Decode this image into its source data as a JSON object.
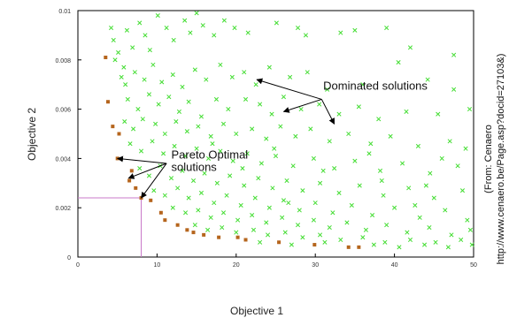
{
  "chart_data": {
    "type": "scatter",
    "title": "",
    "xlabel": "Objective 1",
    "ylabel": "Objective 2",
    "xlim": [
      0,
      50
    ],
    "ylim": [
      0,
      0.01
    ],
    "x_ticks": [
      "0",
      "10",
      "20",
      "30",
      "40",
      "50"
    ],
    "y_ticks": [
      "0",
      "0.002",
      "0.004",
      "0.006",
      "0.008",
      "0.01"
    ],
    "grid": false,
    "series": [
      {
        "role": "pareto",
        "color": "#b5651d",
        "marker": "square",
        "points": [
          [
            3.5,
            0.0081
          ],
          [
            3.8,
            0.0063
          ],
          [
            4.4,
            0.0053
          ],
          [
            5.2,
            0.005
          ],
          [
            5.0,
            0.004
          ],
          [
            6.5,
            0.0031
          ],
          [
            6.8,
            0.0035
          ],
          [
            7.3,
            0.0028
          ],
          [
            8.0,
            0.0024
          ],
          [
            9.2,
            0.0023
          ],
          [
            10.5,
            0.0018
          ],
          [
            11.0,
            0.0015
          ],
          [
            12.6,
            0.0013
          ],
          [
            13.8,
            0.0011
          ],
          [
            14.6,
            0.001
          ],
          [
            15.9,
            0.0009
          ],
          [
            17.8,
            0.0008
          ],
          [
            20.2,
            0.0008
          ],
          [
            21.2,
            0.0007
          ],
          [
            25.4,
            0.0006
          ],
          [
            29.9,
            0.0005
          ],
          [
            34.2,
            0.0004
          ],
          [
            35.5,
            0.0004
          ]
        ]
      },
      {
        "role": "dominated",
        "color": "#44dd33",
        "marker": "x",
        "points": [
          [
            4.2,
            0.0093
          ],
          [
            4.5,
            0.0088
          ],
          [
            5.1,
            0.0083
          ],
          [
            4.7,
            0.008
          ],
          [
            6.2,
            0.0092
          ],
          [
            6.9,
            0.0085
          ],
          [
            5.8,
            0.0077
          ],
          [
            7.8,
            0.0095
          ],
          [
            8.5,
            0.009
          ],
          [
            9.1,
            0.0084
          ],
          [
            10.1,
            0.0098
          ],
          [
            11.2,
            0.0093
          ],
          [
            12.1,
            0.0088
          ],
          [
            13.5,
            0.0096
          ],
          [
            14.2,
            0.0091
          ],
          [
            15.0,
            0.0099
          ],
          [
            15.8,
            0.0094
          ],
          [
            17.2,
            0.009
          ],
          [
            18.5,
            0.0096
          ],
          [
            19.8,
            0.0093
          ],
          [
            21.5,
            0.0091
          ],
          [
            25.1,
            0.0095
          ],
          [
            27.8,
            0.0093
          ],
          [
            28.8,
            0.009
          ],
          [
            33.2,
            0.0091
          ],
          [
            35.0,
            0.0092
          ],
          [
            39.0,
            0.0093
          ],
          [
            42.0,
            0.0085
          ],
          [
            47.5,
            0.0082
          ],
          [
            40.5,
            0.0079
          ],
          [
            5.5,
            0.0073
          ],
          [
            6.0,
            0.007
          ],
          [
            7.2,
            0.0075
          ],
          [
            8.4,
            0.0072
          ],
          [
            9.5,
            0.0078
          ],
          [
            10.6,
            0.0071
          ],
          [
            12.0,
            0.0074
          ],
          [
            13.2,
            0.0069
          ],
          [
            14.8,
            0.0076
          ],
          [
            16.2,
            0.0072
          ],
          [
            18.0,
            0.0078
          ],
          [
            19.5,
            0.0073
          ],
          [
            21.0,
            0.0075
          ],
          [
            22.5,
            0.007
          ],
          [
            24.2,
            0.0077
          ],
          [
            26.8,
            0.0073
          ],
          [
            29.0,
            0.0075
          ],
          [
            31.5,
            0.0068
          ],
          [
            36.0,
            0.007
          ],
          [
            44.2,
            0.0072
          ],
          [
            47.5,
            0.0068
          ],
          [
            6.3,
            0.0064
          ],
          [
            7.6,
            0.006
          ],
          [
            9.0,
            0.0066
          ],
          [
            10.2,
            0.0062
          ],
          [
            11.5,
            0.0065
          ],
          [
            12.8,
            0.0059
          ],
          [
            14.0,
            0.0063
          ],
          [
            15.6,
            0.0057
          ],
          [
            17.5,
            0.0064
          ],
          [
            19.0,
            0.006
          ],
          [
            21.2,
            0.0064
          ],
          [
            23.0,
            0.0062
          ],
          [
            24.5,
            0.0058
          ],
          [
            26.0,
            0.0065
          ],
          [
            28.2,
            0.006
          ],
          [
            30.5,
            0.0062
          ],
          [
            33.0,
            0.0058
          ],
          [
            35.5,
            0.0061
          ],
          [
            38.0,
            0.0056
          ],
          [
            41.5,
            0.0059
          ],
          [
            45.5,
            0.0058
          ],
          [
            49.5,
            0.006
          ],
          [
            5.9,
            0.0055
          ],
          [
            7.0,
            0.0052
          ],
          [
            8.2,
            0.0056
          ],
          [
            9.8,
            0.0054
          ],
          [
            11.0,
            0.005
          ],
          [
            12.4,
            0.0055
          ],
          [
            13.8,
            0.0051
          ],
          [
            15.2,
            0.0053
          ],
          [
            16.8,
            0.0049
          ],
          [
            18.4,
            0.0054
          ],
          [
            20.0,
            0.005
          ],
          [
            22.0,
            0.0052
          ],
          [
            23.8,
            0.0048
          ],
          [
            25.6,
            0.0053
          ],
          [
            27.5,
            0.0049
          ],
          [
            29.4,
            0.0052
          ],
          [
            31.8,
            0.0047
          ],
          [
            34.2,
            0.005
          ],
          [
            37.0,
            0.0046
          ],
          [
            39.5,
            0.0049
          ],
          [
            43.0,
            0.0045
          ],
          [
            47.0,
            0.0047
          ],
          [
            49.0,
            0.0044
          ],
          [
            6.6,
            0.0046
          ],
          [
            8.0,
            0.0043
          ],
          [
            9.4,
            0.0047
          ],
          [
            10.8,
            0.0042
          ],
          [
            12.2,
            0.0045
          ],
          [
            13.6,
            0.0041
          ],
          [
            15.0,
            0.0044
          ],
          [
            16.5,
            0.004
          ],
          [
            18.0,
            0.0043
          ],
          [
            19.6,
            0.0039
          ],
          [
            21.4,
            0.0042
          ],
          [
            23.2,
            0.0038
          ],
          [
            25.0,
            0.0041
          ],
          [
            27.2,
            0.0037
          ],
          [
            29.8,
            0.004
          ],
          [
            32.4,
            0.0036
          ],
          [
            35.0,
            0.0039
          ],
          [
            38.2,
            0.0035
          ],
          [
            41.0,
            0.0038
          ],
          [
            44.5,
            0.0034
          ],
          [
            48.0,
            0.0037
          ],
          [
            7.8,
            0.0036
          ],
          [
            9.0,
            0.0033
          ],
          [
            10.4,
            0.0037
          ],
          [
            11.8,
            0.0032
          ],
          [
            13.2,
            0.0035
          ],
          [
            14.6,
            0.0031
          ],
          [
            16.0,
            0.0034
          ],
          [
            17.6,
            0.003
          ],
          [
            19.2,
            0.0033
          ],
          [
            21.0,
            0.0029
          ],
          [
            22.8,
            0.0032
          ],
          [
            24.6,
            0.0028
          ],
          [
            26.4,
            0.0031
          ],
          [
            28.4,
            0.0027
          ],
          [
            30.6,
            0.003
          ],
          [
            33.0,
            0.0026
          ],
          [
            35.6,
            0.0029
          ],
          [
            38.6,
            0.0025
          ],
          [
            41.8,
            0.0028
          ],
          [
            45.0,
            0.0024
          ],
          [
            48.6,
            0.0027
          ],
          [
            9.6,
            0.0027
          ],
          [
            11.0,
            0.0025
          ],
          [
            12.6,
            0.0028
          ],
          [
            14.0,
            0.0024
          ],
          [
            15.6,
            0.0026
          ],
          [
            17.2,
            0.0022
          ],
          [
            18.8,
            0.0025
          ],
          [
            20.6,
            0.0021
          ],
          [
            22.4,
            0.0024
          ],
          [
            24.2,
            0.002
          ],
          [
            26.0,
            0.0023
          ],
          [
            28.0,
            0.0019
          ],
          [
            30.0,
            0.0022
          ],
          [
            32.2,
            0.0018
          ],
          [
            34.6,
            0.0021
          ],
          [
            37.2,
            0.0017
          ],
          [
            40.0,
            0.002
          ],
          [
            43.2,
            0.0016
          ],
          [
            46.4,
            0.0019
          ],
          [
            49.2,
            0.0015
          ],
          [
            12.0,
            0.002
          ],
          [
            13.6,
            0.0018
          ],
          [
            15.2,
            0.0019
          ],
          [
            16.8,
            0.0016
          ],
          [
            18.4,
            0.0018
          ],
          [
            20.2,
            0.0015
          ],
          [
            22.0,
            0.0017
          ],
          [
            23.8,
            0.0014
          ],
          [
            25.8,
            0.0016
          ],
          [
            27.8,
            0.0013
          ],
          [
            29.8,
            0.0015
          ],
          [
            31.8,
            0.0012
          ],
          [
            34.0,
            0.0014
          ],
          [
            36.4,
            0.0011
          ],
          [
            39.0,
            0.0013
          ],
          [
            41.6,
            0.001
          ],
          [
            44.4,
            0.0012
          ],
          [
            47.2,
            0.0009
          ],
          [
            49.6,
            0.0011
          ],
          [
            14.8,
            0.0013
          ],
          [
            16.4,
            0.0011
          ],
          [
            18.2,
            0.0012
          ],
          [
            20.0,
            0.001
          ],
          [
            22.2,
            0.0011
          ],
          [
            24.0,
            0.0009
          ],
          [
            26.2,
            0.001
          ],
          [
            28.4,
            0.0008
          ],
          [
            30.6,
            0.0009
          ],
          [
            33.2,
            0.0007
          ],
          [
            36.0,
            0.0008
          ],
          [
            38.8,
            0.0006
          ],
          [
            42.0,
            0.0007
          ],
          [
            45.2,
            0.0006
          ],
          [
            48.4,
            0.0007
          ],
          [
            23.0,
            0.0006
          ],
          [
            27.0,
            0.0005
          ],
          [
            31.2,
            0.0006
          ],
          [
            37.4,
            0.0005
          ],
          [
            40.6,
            0.0004
          ],
          [
            43.8,
            0.0005
          ],
          [
            46.8,
            0.0004
          ],
          [
            49.8,
            0.0005
          ],
          [
            26.6,
            0.0022
          ],
          [
            31.0,
            0.0035
          ],
          [
            36.8,
            0.0042
          ],
          [
            42.6,
            0.0021
          ],
          [
            38.4,
            0.0031
          ],
          [
            44.0,
            0.0029
          ],
          [
            46.0,
            0.004
          ],
          [
            20.8,
            0.0036
          ],
          [
            17.0,
            0.0046
          ],
          [
            24.8,
            0.0044
          ]
        ]
      }
    ],
    "annotations": [
      {
        "text": "Dominated solutions",
        "x": 31,
        "y": 0.0068
      },
      {
        "text": "Pareto Optimal",
        "x": 11.8,
        "y": 0.004
      },
      {
        "text": "solutions",
        "x": 11.8,
        "y": 0.0035
      }
    ],
    "dominated_arrows": {
      "tail": [
        30.8,
        0.0064
      ],
      "heads": [
        [
          22.6,
          0.0072
        ],
        [
          26.0,
          0.0059
        ],
        [
          32.4,
          0.0054
        ]
      ]
    },
    "pareto_arrows": {
      "tail": [
        11.2,
        0.0038
      ],
      "heads": [
        [
          5.0,
          0.004
        ],
        [
          6.4,
          0.0032
        ],
        [
          8.0,
          0.0024
        ]
      ]
    },
    "reference_point": {
      "x": 8.0,
      "y": 0.0024,
      "color": "#c878c8"
    },
    "source_note": [
      "(From: Cenaero",
      "http://www.cenaero.be/Page.asp?docid=27103&)"
    ]
  }
}
